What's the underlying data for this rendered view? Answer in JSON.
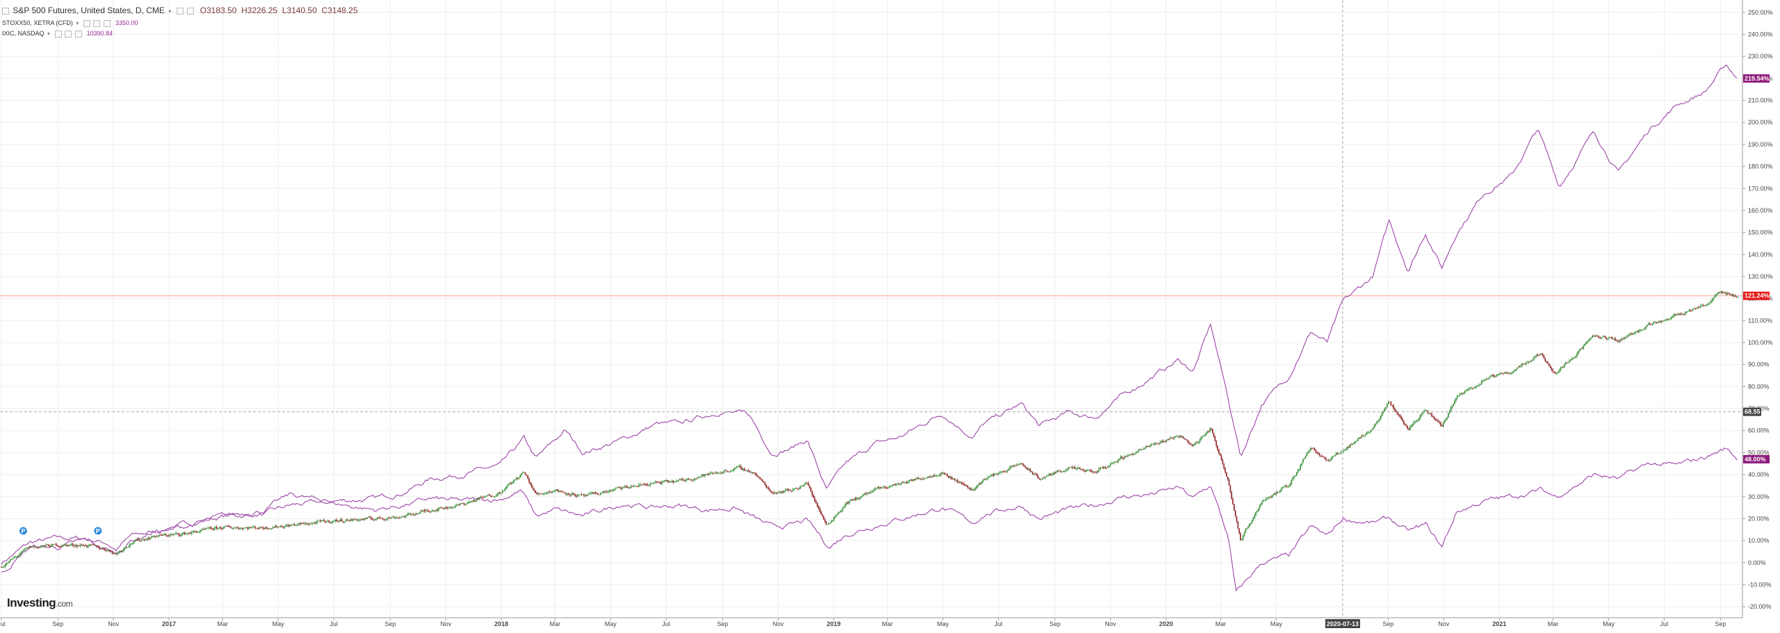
{
  "legend": {
    "main": {
      "name": "S&P 500 Futures, United States, D, CME",
      "open": "O3183.50",
      "high": "H3226.25",
      "low": "L3140.50",
      "close": "C3148.25"
    },
    "series2": {
      "name": "STOXX50, XETRA (CFD)",
      "value": "3350.00"
    },
    "series3": {
      "name": "IXIC, NASDAQ",
      "value": "10390.84"
    }
  },
  "logo": {
    "brand": "Investing",
    "suffix": ".com"
  },
  "colors": {
    "background": "#ffffff",
    "grid": "#eeeeee",
    "up": "#2e8b2e",
    "down": "#8b1a1a",
    "compare": "#9b45a6",
    "red_line": "#f2a090",
    "axis_text": "#444444"
  },
  "chart_data": {
    "type": "line",
    "x_range": [
      "2016-07-01",
      "2021-09-25"
    ],
    "ylim": [
      -25,
      255
    ],
    "y_unit": "%",
    "y_ticks": [
      250,
      240,
      230,
      220,
      210,
      200,
      190,
      180,
      170,
      160,
      150,
      140,
      130,
      120,
      110,
      100,
      90,
      80,
      70,
      60,
      50,
      40,
      30,
      20,
      10,
      0,
      -10,
      -20
    ],
    "x_ticks": [
      {
        "date": "2016-07-01",
        "label": "Jul"
      },
      {
        "date": "2016-09-01",
        "label": "Sep"
      },
      {
        "date": "2016-11-01",
        "label": "Nov"
      },
      {
        "date": "2017-01-01",
        "label": "2017"
      },
      {
        "date": "2017-03-01",
        "label": "Mar"
      },
      {
        "date": "2017-05-01",
        "label": "May"
      },
      {
        "date": "2017-07-01",
        "label": "Jul"
      },
      {
        "date": "2017-09-01",
        "label": "Sep"
      },
      {
        "date": "2017-11-01",
        "label": "Nov"
      },
      {
        "date": "2018-01-01",
        "label": "2018"
      },
      {
        "date": "2018-03-01",
        "label": "Mar"
      },
      {
        "date": "2018-05-01",
        "label": "May"
      },
      {
        "date": "2018-07-01",
        "label": "Jul"
      },
      {
        "date": "2018-09-01",
        "label": "Sep"
      },
      {
        "date": "2018-11-01",
        "label": "Nov"
      },
      {
        "date": "2019-01-01",
        "label": "2019"
      },
      {
        "date": "2019-03-01",
        "label": "Mar"
      },
      {
        "date": "2019-05-01",
        "label": "May"
      },
      {
        "date": "2019-07-01",
        "label": "Jul"
      },
      {
        "date": "2019-09-01",
        "label": "Sep"
      },
      {
        "date": "2019-11-01",
        "label": "Nov"
      },
      {
        "date": "2020-01-01",
        "label": "2020"
      },
      {
        "date": "2020-03-01",
        "label": "Mar"
      },
      {
        "date": "2020-05-01",
        "label": "May"
      },
      {
        "date": "2020-09-01",
        "label": "Sep"
      },
      {
        "date": "2020-11-01",
        "label": "Nov"
      },
      {
        "date": "2021-01-01",
        "label": "2021"
      },
      {
        "date": "2021-03-01",
        "label": "Mar"
      },
      {
        "date": "2021-05-01",
        "label": "May"
      },
      {
        "date": "2021-07-01",
        "label": "Jul"
      },
      {
        "date": "2021-09-01",
        "label": "Sep"
      }
    ],
    "crosshair": {
      "date": "2020-07-13",
      "date_label": "2020-07-13",
      "value": 68.55,
      "value_label": "68.55"
    },
    "hline": {
      "value": 121.24,
      "label": "121.24%"
    },
    "events": [
      {
        "date": "2016-07-25",
        "label": "P"
      },
      {
        "date": "2016-10-15",
        "label": "P"
      }
    ],
    "series": [
      {
        "style": "candles",
        "label": "121.24%",
        "points": [
          [
            "2016-07-01",
            -2
          ],
          [
            "2016-08-01",
            7
          ],
          [
            "2016-09-01",
            8
          ],
          [
            "2016-10-01",
            8
          ],
          [
            "2016-10-25",
            6
          ],
          [
            "2016-11-04",
            4
          ],
          [
            "2016-11-20",
            9
          ],
          [
            "2016-12-15",
            12
          ],
          [
            "2017-01-15",
            13
          ],
          [
            "2017-03-01",
            16
          ],
          [
            "2017-04-15",
            16
          ],
          [
            "2017-05-15",
            17
          ],
          [
            "2017-07-01",
            19
          ],
          [
            "2017-08-15",
            20
          ],
          [
            "2017-09-15",
            21
          ],
          [
            "2017-10-15",
            24
          ],
          [
            "2017-11-15",
            26
          ],
          [
            "2017-12-31",
            32
          ],
          [
            "2018-01-26",
            41
          ],
          [
            "2018-02-08",
            31
          ],
          [
            "2018-03-01",
            33
          ],
          [
            "2018-04-01",
            30
          ],
          [
            "2018-05-15",
            34
          ],
          [
            "2018-06-15",
            36
          ],
          [
            "2018-07-15",
            37
          ],
          [
            "2018-08-15",
            40
          ],
          [
            "2018-09-20",
            43
          ],
          [
            "2018-10-05",
            41
          ],
          [
            "2018-10-25",
            32
          ],
          [
            "2018-11-15",
            33
          ],
          [
            "2018-12-03",
            36
          ],
          [
            "2018-12-24",
            17
          ],
          [
            "2019-01-15",
            27
          ],
          [
            "2019-02-15",
            33
          ],
          [
            "2019-03-15",
            36
          ],
          [
            "2019-04-30",
            41
          ],
          [
            "2019-06-03",
            33
          ],
          [
            "2019-06-15",
            38
          ],
          [
            "2019-07-26",
            45
          ],
          [
            "2019-08-15",
            38
          ],
          [
            "2019-09-15",
            43
          ],
          [
            "2019-10-15",
            41
          ],
          [
            "2019-11-15",
            48
          ],
          [
            "2019-12-15",
            53
          ],
          [
            "2020-01-15",
            58
          ],
          [
            "2020-01-31",
            53
          ],
          [
            "2020-02-19",
            61
          ],
          [
            "2020-03-09",
            38
          ],
          [
            "2020-03-23",
            10
          ],
          [
            "2020-04-15",
            28
          ],
          [
            "2020-05-15",
            35
          ],
          [
            "2020-06-08",
            53
          ],
          [
            "2020-06-26",
            46
          ],
          [
            "2020-07-13",
            51
          ],
          [
            "2020-08-15",
            61
          ],
          [
            "2020-09-02",
            73
          ],
          [
            "2020-09-23",
            61
          ],
          [
            "2020-10-12",
            69
          ],
          [
            "2020-10-30",
            62
          ],
          [
            "2020-11-15",
            75
          ],
          [
            "2020-12-15",
            83
          ],
          [
            "2021-01-15",
            87
          ],
          [
            "2021-02-15",
            95
          ],
          [
            "2021-03-04",
            86
          ],
          [
            "2021-04-15",
            103
          ],
          [
            "2021-05-12",
            101
          ],
          [
            "2021-06-15",
            108
          ],
          [
            "2021-07-15",
            113
          ],
          [
            "2021-08-15",
            117
          ],
          [
            "2021-09-02",
            123
          ],
          [
            "2021-09-20",
            121
          ]
        ]
      },
      {
        "style": "line",
        "label": "219.54%",
        "points": [
          [
            "2016-07-01",
            0
          ],
          [
            "2016-08-01",
            9
          ],
          [
            "2016-09-01",
            11
          ],
          [
            "2016-10-01",
            11
          ],
          [
            "2016-10-25",
            9
          ],
          [
            "2016-11-04",
            6
          ],
          [
            "2016-11-20",
            12
          ],
          [
            "2016-12-15",
            14
          ],
          [
            "2017-01-15",
            17
          ],
          [
            "2017-03-01",
            21
          ],
          [
            "2017-04-15",
            22
          ],
          [
            "2017-05-15",
            26
          ],
          [
            "2017-07-01",
            28
          ],
          [
            "2017-08-15",
            29
          ],
          [
            "2017-09-15",
            32
          ],
          [
            "2017-10-15",
            38
          ],
          [
            "2017-11-15",
            40
          ],
          [
            "2017-12-31",
            44
          ],
          [
            "2018-01-26",
            56
          ],
          [
            "2018-02-08",
            47
          ],
          [
            "2018-03-12",
            60
          ],
          [
            "2018-04-01",
            50
          ],
          [
            "2018-05-15",
            56
          ],
          [
            "2018-06-20",
            63
          ],
          [
            "2018-07-15",
            63
          ],
          [
            "2018-08-30",
            69
          ],
          [
            "2018-09-30",
            67
          ],
          [
            "2018-10-25",
            50
          ],
          [
            "2018-11-15",
            52
          ],
          [
            "2018-12-03",
            56
          ],
          [
            "2018-12-24",
            33
          ],
          [
            "2019-01-15",
            45
          ],
          [
            "2019-02-15",
            54
          ],
          [
            "2019-03-15",
            57
          ],
          [
            "2019-04-30",
            68
          ],
          [
            "2019-06-03",
            57
          ],
          [
            "2019-06-15",
            63
          ],
          [
            "2019-07-26",
            72
          ],
          [
            "2019-08-15",
            62
          ],
          [
            "2019-09-15",
            68
          ],
          [
            "2019-10-15",
            66
          ],
          [
            "2019-11-15",
            76
          ],
          [
            "2019-12-15",
            84
          ],
          [
            "2020-01-15",
            92
          ],
          [
            "2020-01-31",
            87
          ],
          [
            "2020-02-19",
            108
          ],
          [
            "2020-03-09",
            75
          ],
          [
            "2020-03-23",
            48
          ],
          [
            "2020-04-15",
            72
          ],
          [
            "2020-05-15",
            85
          ],
          [
            "2020-06-08",
            105
          ],
          [
            "2020-06-26",
            100
          ],
          [
            "2020-07-13",
            118
          ],
          [
            "2020-08-15",
            130
          ],
          [
            "2020-09-02",
            155
          ],
          [
            "2020-09-23",
            133
          ],
          [
            "2020-10-12",
            150
          ],
          [
            "2020-10-30",
            134
          ],
          [
            "2020-11-15",
            150
          ],
          [
            "2020-12-15",
            168
          ],
          [
            "2021-01-15",
            176
          ],
          [
            "2021-02-12",
            197
          ],
          [
            "2021-03-08",
            171
          ],
          [
            "2021-04-15",
            196
          ],
          [
            "2021-05-12",
            177
          ],
          [
            "2021-06-15",
            197
          ],
          [
            "2021-07-15",
            208
          ],
          [
            "2021-08-15",
            214
          ],
          [
            "2021-09-07",
            226
          ],
          [
            "2021-09-20",
            220
          ]
        ]
      },
      {
        "style": "line",
        "label": "48.00%",
        "points": [
          [
            "2016-07-01",
            -5
          ],
          [
            "2016-08-01",
            7
          ],
          [
            "2016-09-01",
            7
          ],
          [
            "2016-10-01",
            10
          ],
          [
            "2016-11-04",
            4
          ],
          [
            "2016-11-20",
            10
          ],
          [
            "2016-12-15",
            14
          ],
          [
            "2017-01-15",
            16
          ],
          [
            "2017-03-01",
            21
          ],
          [
            "2017-04-15",
            24
          ],
          [
            "2017-05-15",
            31
          ],
          [
            "2017-07-01",
            27
          ],
          [
            "2017-08-15",
            24
          ],
          [
            "2017-09-15",
            26
          ],
          [
            "2017-10-15",
            29
          ],
          [
            "2017-11-15",
            28
          ],
          [
            "2017-12-31",
            29
          ],
          [
            "2018-01-23",
            33
          ],
          [
            "2018-02-08",
            21
          ],
          [
            "2018-03-01",
            24
          ],
          [
            "2018-04-01",
            21
          ],
          [
            "2018-05-15",
            27
          ],
          [
            "2018-06-15",
            25
          ],
          [
            "2018-07-15",
            26
          ],
          [
            "2018-08-15",
            24
          ],
          [
            "2018-09-15",
            25
          ],
          [
            "2018-10-25",
            16
          ],
          [
            "2018-11-15",
            17
          ],
          [
            "2018-12-03",
            19
          ],
          [
            "2018-12-27",
            7
          ],
          [
            "2019-01-15",
            13
          ],
          [
            "2019-02-15",
            17
          ],
          [
            "2019-03-15",
            20
          ],
          [
            "2019-04-30",
            25
          ],
          [
            "2019-06-03",
            18
          ],
          [
            "2019-06-15",
            22
          ],
          [
            "2019-07-26",
            26
          ],
          [
            "2019-08-15",
            20
          ],
          [
            "2019-09-15",
            24
          ],
          [
            "2019-10-15",
            26
          ],
          [
            "2019-11-15",
            30
          ],
          [
            "2019-12-15",
            31
          ],
          [
            "2020-01-15",
            34
          ],
          [
            "2020-01-31",
            29
          ],
          [
            "2020-02-19",
            35
          ],
          [
            "2020-03-09",
            12
          ],
          [
            "2020-03-18",
            -14
          ],
          [
            "2020-04-15",
            0
          ],
          [
            "2020-05-15",
            3
          ],
          [
            "2020-06-08",
            16
          ],
          [
            "2020-06-26",
            12
          ],
          [
            "2020-07-13",
            20
          ],
          [
            "2020-08-15",
            18
          ],
          [
            "2020-09-02",
            20
          ],
          [
            "2020-09-23",
            14
          ],
          [
            "2020-10-12",
            17
          ],
          [
            "2020-10-30",
            7
          ],
          [
            "2020-11-15",
            23
          ],
          [
            "2020-12-15",
            28
          ],
          [
            "2021-01-15",
            30
          ],
          [
            "2021-02-15",
            33
          ],
          [
            "2021-03-04",
            30
          ],
          [
            "2021-04-15",
            40
          ],
          [
            "2021-05-12",
            38
          ],
          [
            "2021-06-15",
            45
          ],
          [
            "2021-07-15",
            44
          ],
          [
            "2021-08-15",
            48
          ],
          [
            "2021-09-07",
            52
          ],
          [
            "2021-09-20",
            47
          ]
        ]
      }
    ]
  }
}
